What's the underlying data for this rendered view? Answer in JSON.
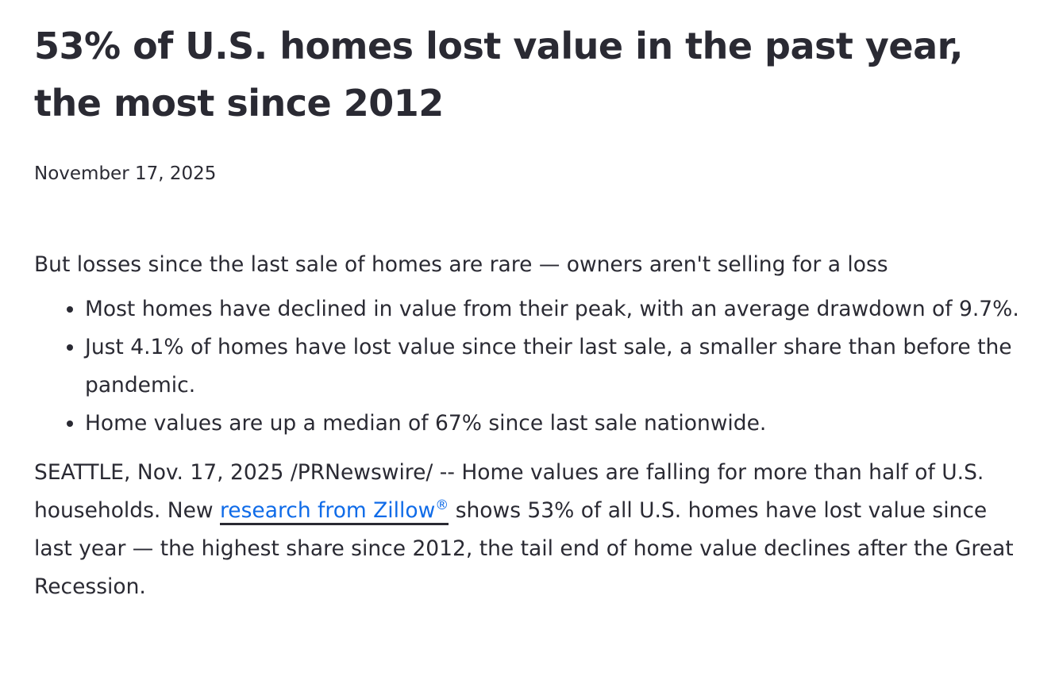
{
  "headline": "53% of U.S. homes lost value in the past year, the most since 2012",
  "date": "November 17, 2025",
  "subheadline": "But losses since the last sale of homes are rare — owners aren't selling for a loss",
  "bullets": [
    "Most homes have declined in value from their peak, with an average drawdown of 9.7%.",
    "Just 4.1% of homes have lost value since their last sale, a smaller share than before the pandemic.",
    "Home values are up a median of 67% since last sale nationwide."
  ],
  "body": {
    "before_link": "SEATTLE, Nov. 17, 2025 /PRNewswire/ -- Home values are falling for more than half of U.S. households. New ",
    "link_text": "research from Zillow",
    "link_sup": "®",
    "after_link": " shows 53% of all U.S. homes have lost value since last year — the highest share since 2012, the tail end of home value declines after the Great Recession."
  },
  "colors": {
    "text": "#2a2a33",
    "link": "#0f6be8"
  }
}
